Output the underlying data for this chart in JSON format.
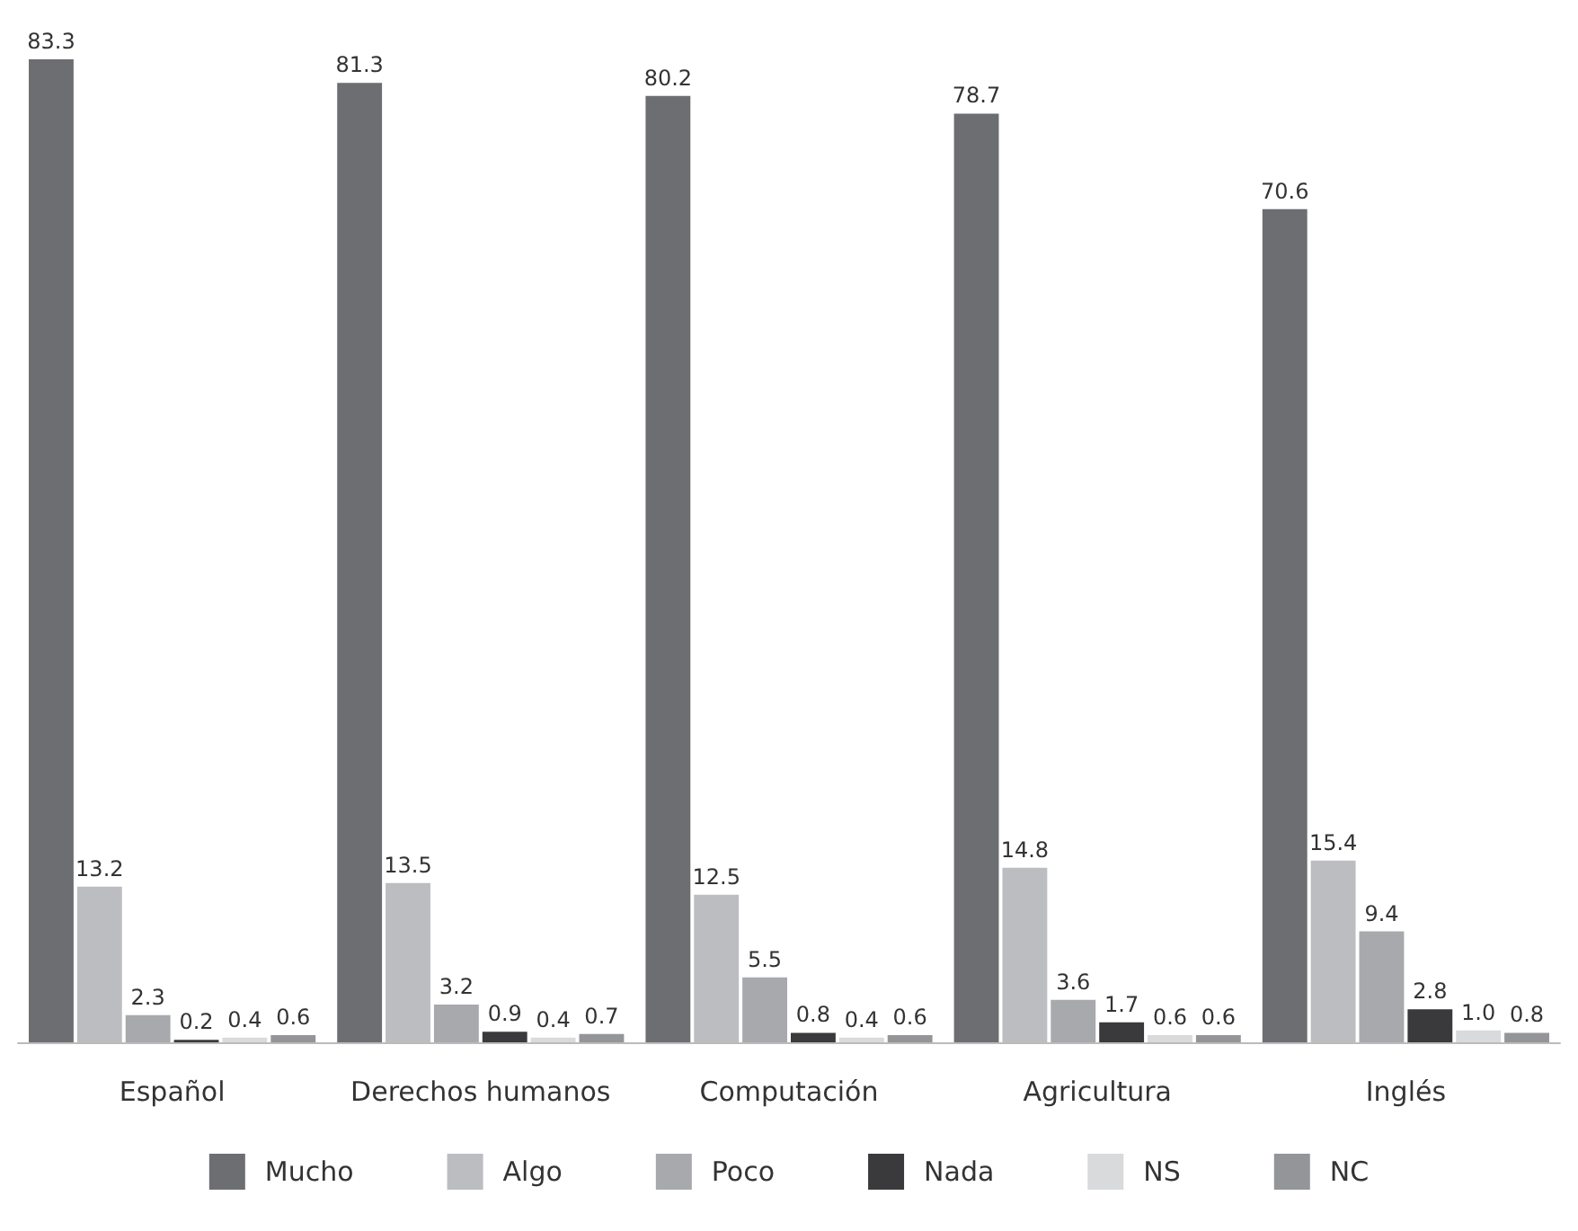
{
  "chart_data": {
    "type": "bar",
    "categories": [
      "Español",
      "Derechos humanos",
      "Computación",
      "Agricultura",
      "Inglés"
    ],
    "series": [
      {
        "name": "Mucho",
        "color": "#6d6e71",
        "values": [
          83.3,
          81.3,
          80.2,
          78.7,
          70.6
        ],
        "value_labels": [
          "83.3",
          "81.3",
          "80.2",
          "78.7",
          "70.6"
        ]
      },
      {
        "name": "Algo",
        "color": "#bcbdc0",
        "values": [
          13.2,
          13.5,
          12.5,
          14.8,
          15.4
        ],
        "value_labels": [
          "13.2",
          "13.5",
          "12.5",
          "14.8",
          "15.4"
        ]
      },
      {
        "name": "Poco",
        "color": "#a7a9ac",
        "values": [
          2.3,
          3.2,
          5.5,
          3.6,
          9.4
        ],
        "value_labels": [
          "2.3",
          "3.2",
          "5.5",
          "3.6",
          "9.4"
        ]
      },
      {
        "name": "Nada",
        "color": "#3a3a3c",
        "values": [
          0.2,
          0.9,
          0.8,
          1.7,
          2.8
        ],
        "value_labels": [
          "0.2",
          "0.9",
          "0.8",
          "1.7",
          "2.8"
        ]
      },
      {
        "name": "NS",
        "color": "#d9dadb",
        "values": [
          0.4,
          0.4,
          0.4,
          0.6,
          1.0
        ],
        "value_labels": [
          "0.4",
          "0.4",
          "0.4",
          "0.6",
          "1.0"
        ]
      },
      {
        "name": "NC",
        "color": "#939598",
        "values": [
          0.6,
          0.7,
          0.6,
          0.6,
          0.8
        ],
        "value_labels": [
          "0.6",
          "0.7",
          "0.6",
          "0.6",
          "0.8"
        ]
      }
    ],
    "legend": "bottom",
    "grid": false,
    "tick_labels": "x"
  }
}
